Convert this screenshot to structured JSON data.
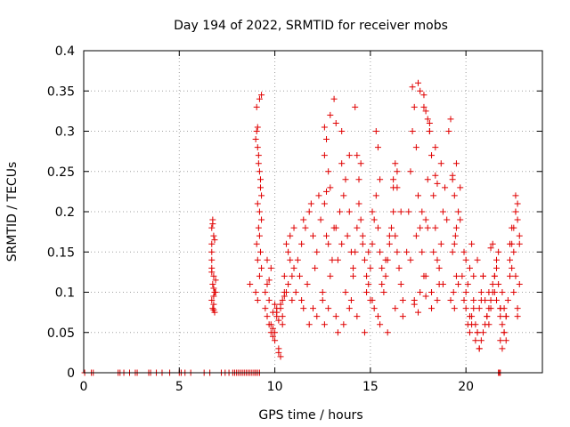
{
  "chart_data": {
    "type": "scatter",
    "title": "Day 194 of 2022, SRMTID for receiver mobs",
    "xlabel": "GPS time / hours",
    "ylabel": "SRMTID / TECUs",
    "xlim": [
      0,
      24
    ],
    "ylim": [
      0,
      0.4
    ],
    "xticks": [
      0,
      5,
      10,
      15,
      20
    ],
    "xtick_labels": [
      "0",
      "5",
      "10",
      "15",
      "20"
    ],
    "yticks": [
      0,
      0.05,
      0.1,
      0.15,
      0.2,
      0.25,
      0.3,
      0.35,
      0.4
    ],
    "ytick_labels": [
      "0",
      "0.05",
      "0.1",
      "0.15",
      "0.2",
      "0.25",
      "0.3",
      "0.35",
      "0.4"
    ],
    "grid": true,
    "marker": "+",
    "color": "#e00000",
    "series": [
      {
        "name": "mobs",
        "x": [
          0.05,
          0.4,
          0.5,
          1.8,
          1.9,
          2.1,
          2.4,
          2.7,
          2.8,
          3.4,
          3.5,
          3.8,
          4.1,
          4.5,
          5.0,
          5.1,
          5.3,
          5.6,
          6.3,
          6.6,
          7.2,
          7.4,
          7.6,
          7.8,
          7.9,
          8.0,
          8.1,
          8.2,
          8.3,
          8.4,
          8.5,
          8.6,
          8.7,
          8.8,
          8.9,
          9.0,
          9.0,
          9.1,
          9.2,
          21.7,
          21.75,
          21.8,
          6.7,
          6.75,
          6.8,
          6.7,
          6.85,
          6.7,
          6.8,
          6.75,
          6.9,
          6.8,
          6.7,
          6.75,
          6.85,
          6.7,
          6.8,
          6.9,
          6.75,
          6.7,
          6.8,
          6.85,
          6.7,
          6.8,
          8.7,
          9.0,
          9.05,
          9.1,
          9.15,
          9.2,
          9.25,
          9.3,
          9.1,
          9.2,
          9.3,
          9.15,
          9.05,
          9.25,
          9.1,
          9.3,
          9.2,
          9.0,
          9.1,
          9.2,
          9.3,
          9.05,
          9.15,
          9.25,
          9.2,
          9.1,
          9.5,
          9.6,
          9.7,
          9.8,
          9.9,
          10.0,
          10.1,
          10.2,
          10.3,
          10.4,
          10.5,
          9.6,
          9.8,
          10.0,
          10.2,
          10.4,
          9.7,
          9.9,
          10.1,
          10.3,
          10.5,
          9.5,
          9.8,
          10.1,
          10.4,
          9.6,
          9.9,
          10.2,
          10.5,
          10.0,
          10.3,
          9.7,
          10.6,
          10.7,
          10.8,
          10.9,
          11.0,
          10.6,
          10.8,
          11.0,
          10.7,
          10.9,
          11.2,
          11.4,
          11.6,
          11.8,
          12.0,
          12.2,
          12.4,
          12.6,
          12.8,
          13.0,
          13.2,
          13.4,
          13.6,
          13.8,
          14.0,
          11.3,
          11.7,
          12.1,
          12.5,
          12.9,
          13.3,
          13.7,
          14.1,
          11.5,
          11.9,
          12.3,
          12.7,
          13.1,
          13.5,
          13.9,
          12.6,
          12.7,
          12.8,
          12.9,
          13.1,
          13.2,
          13.5,
          13.7,
          13.9,
          13.5,
          12.9,
          12.6,
          12.7,
          11.5,
          11.8,
          12.2,
          12.5,
          12.8,
          13.2,
          13.6,
          14.0,
          11.1,
          11.4,
          12.0,
          12.6,
          13.3,
          13.9,
          14.1,
          14.2,
          14.3,
          14.4,
          14.5,
          14.6,
          14.7,
          14.8,
          14.9,
          15.0,
          15.1,
          15.2,
          15.3,
          15.4,
          15.5,
          15.6,
          15.7,
          15.8,
          15.9,
          16.0,
          16.1,
          16.2,
          16.3,
          16.4,
          16.5,
          16.6,
          16.7,
          14.2,
          14.4,
          14.6,
          14.8,
          15.0,
          15.2,
          15.4,
          15.6,
          15.8,
          16.0,
          16.2,
          16.4,
          16.6,
          14.3,
          14.7,
          15.1,
          15.5,
          15.9,
          16.3,
          16.7,
          15.3,
          15.4,
          15.5,
          16.3,
          16.4,
          16.2,
          15.1,
          14.9,
          14.3,
          14.5,
          16.9,
          17.0,
          17.1,
          17.2,
          17.3,
          17.4,
          17.5,
          17.6,
          17.7,
          17.8,
          17.9,
          18.0,
          18.1,
          18.2,
          18.3,
          18.4,
          18.5,
          18.6,
          18.7,
          18.8,
          18.9,
          19.0,
          17.2,
          17.5,
          17.8,
          18.1,
          18.4,
          18.7,
          17.3,
          17.6,
          17.9,
          18.2,
          18.5,
          18.8,
          17.1,
          17.4,
          17.7,
          18.0,
          18.3,
          18.6,
          17.6,
          17.8,
          17.9,
          18.0,
          18.1,
          18.4,
          18.5,
          17.3,
          17.5,
          17.9,
          18.2,
          19.1,
          19.2,
          19.3,
          19.4,
          19.5,
          19.6,
          19.7,
          19.3,
          19.4,
          19.5,
          19.35,
          19.2,
          19.4,
          19.6,
          19.5,
          19.3,
          19.7,
          19.45,
          19.8,
          19.9,
          20.0,
          20.1,
          20.2,
          20.3,
          20.4,
          20.5,
          20.6,
          20.7,
          20.8,
          20.9,
          21.0,
          21.1,
          21.2,
          21.3,
          21.4,
          21.5,
          21.6,
          21.7,
          21.8,
          21.9,
          22.0,
          22.1,
          22.2,
          19.9,
          20.1,
          20.3,
          20.5,
          20.7,
          20.9,
          21.1,
          21.3,
          21.5,
          21.7,
          21.9,
          22.1,
          20.0,
          20.2,
          20.4,
          20.6,
          20.8,
          21.0,
          21.2,
          21.4,
          21.6,
          21.8,
          22.0,
          20.0,
          20.4,
          20.8,
          21.2,
          21.6,
          22.0,
          20.3,
          20.6,
          20.9,
          21.5,
          21.8,
          22.1,
          21.3,
          21.4,
          21.8,
          20.2,
          20.7,
          21.9,
          22.3,
          22.4,
          22.5,
          22.6,
          22.7,
          22.8,
          22.3,
          22.5,
          22.7,
          22.4,
          22.6,
          22.8,
          22.5,
          22.6,
          22.7,
          22.8,
          22.3,
          22.4,
          22.6,
          22.7
        ],
        "y": [
          0,
          0,
          0,
          0,
          0,
          0,
          0,
          0,
          0,
          0,
          0,
          0,
          0,
          0,
          0,
          0,
          0,
          0,
          0,
          0,
          0,
          0,
          0,
          0,
          0,
          0,
          0,
          0,
          0,
          0,
          0,
          0,
          0,
          0,
          0,
          0,
          0,
          0,
          0,
          0,
          0,
          0,
          0.18,
          0.19,
          0.17,
          0.16,
          0.165,
          0.13,
          0.12,
          0.11,
          0.1,
          0.095,
          0.09,
          0.08,
          0.075,
          0.14,
          0.105,
          0.115,
          0.185,
          0.15,
          0.085,
          0.1,
          0.125,
          0.078,
          0.11,
          0.29,
          0.3,
          0.28,
          0.27,
          0.25,
          0.23,
          0.22,
          0.21,
          0.2,
          0.19,
          0.18,
          0.16,
          0.15,
          0.14,
          0.13,
          0.12,
          0.1,
          0.09,
          0.34,
          0.345,
          0.33,
          0.26,
          0.24,
          0.17,
          0.305,
          0.08,
          0.07,
          0.06,
          0.05,
          0.075,
          0.085,
          0.07,
          0.065,
          0.08,
          0.09,
          0.1,
          0.11,
          0.06,
          0.04,
          0.03,
          0.07,
          0.09,
          0.055,
          0.075,
          0.085,
          0.12,
          0.1,
          0.13,
          0.08,
          0.06,
          0.14,
          0.045,
          0.025,
          0.095,
          0.05,
          0.02,
          0.115,
          0.16,
          0.15,
          0.14,
          0.12,
          0.13,
          0.1,
          0.17,
          0.18,
          0.11,
          0.09,
          0.14,
          0.16,
          0.18,
          0.2,
          0.17,
          0.15,
          0.19,
          0.21,
          0.16,
          0.14,
          0.18,
          0.2,
          0.22,
          0.17,
          0.15,
          0.12,
          0.11,
          0.13,
          0.1,
          0.12,
          0.14,
          0.1,
          0.13,
          0.19,
          0.21,
          0.22,
          0.17,
          0.18,
          0.16,
          0.2,
          0.27,
          0.29,
          0.25,
          0.32,
          0.34,
          0.31,
          0.26,
          0.24,
          0.27,
          0.3,
          0.23,
          0.305,
          0.225,
          0.08,
          0.06,
          0.07,
          0.09,
          0.08,
          0.07,
          0.06,
          0.09,
          0.1,
          0.09,
          0.08,
          0.06,
          0.05,
          0.08,
          0.12,
          0.15,
          0.18,
          0.21,
          0.19,
          0.17,
          0.14,
          0.12,
          0.11,
          0.13,
          0.16,
          0.19,
          0.22,
          0.18,
          0.15,
          0.13,
          0.1,
          0.12,
          0.14,
          0.16,
          0.18,
          0.2,
          0.17,
          0.15,
          0.13,
          0.11,
          0.09,
          0.33,
          0.24,
          0.16,
          0.1,
          0.09,
          0.08,
          0.07,
          0.11,
          0.14,
          0.17,
          0.23,
          0.25,
          0.2,
          0.07,
          0.05,
          0.09,
          0.06,
          0.05,
          0.08,
          0.07,
          0.3,
          0.28,
          0.24,
          0.26,
          0.23,
          0.24,
          0.2,
          0.15,
          0.27,
          0.26,
          0.15,
          0.2,
          0.25,
          0.3,
          0.33,
          0.28,
          0.22,
          0.18,
          0.15,
          0.12,
          0.19,
          0.24,
          0.3,
          0.27,
          0.22,
          0.18,
          0.14,
          0.11,
          0.16,
          0.2,
          0.23,
          0.19,
          0.355,
          0.36,
          0.33,
          0.31,
          0.28,
          0.26,
          0.09,
          0.1,
          0.12,
          0.1,
          0.09,
          0.11,
          0.14,
          0.17,
          0.2,
          0.18,
          0.15,
          0.13,
          0.35,
          0.345,
          0.325,
          0.315,
          0.3,
          0.245,
          0.235,
          0.085,
          0.075,
          0.095,
          0.08,
          0.3,
          0.315,
          0.24,
          0.22,
          0.18,
          0.2,
          0.23,
          0.15,
          0.16,
          0.12,
          0.1,
          0.09,
          0.08,
          0.11,
          0.26,
          0.245,
          0.19,
          0.17,
          0.12,
          0.09,
          0.08,
          0.06,
          0.05,
          0.07,
          0.09,
          0.06,
          0.05,
          0.08,
          0.1,
          0.12,
          0.09,
          0.07,
          0.06,
          0.08,
          0.1,
          0.12,
          0.14,
          0.11,
          0.08,
          0.06,
          0.05,
          0.07,
          0.09,
          0.15,
          0.11,
          0.06,
          0.04,
          0.03,
          0.05,
          0.07,
          0.09,
          0.12,
          0.15,
          0.1,
          0.07,
          0.1,
          0.13,
          0.08,
          0.05,
          0.04,
          0.06,
          0.08,
          0.11,
          0.13,
          0.08,
          0.05,
          0.14,
          0.12,
          0.09,
          0.1,
          0.09,
          0.08,
          0.16,
          0.14,
          0.12,
          0.1,
          0.07,
          0.04,
          0.155,
          0.16,
          0.04,
          0.07,
          0.03,
          0.03,
          0.14,
          0.16,
          0.18,
          0.2,
          0.19,
          0.17,
          0.12,
          0.15,
          0.21,
          0.13,
          0.22,
          0.16,
          0.1,
          0.12,
          0.08,
          0.11,
          0.16,
          0.18,
          0.2,
          0.07
        ]
      }
    ]
  }
}
